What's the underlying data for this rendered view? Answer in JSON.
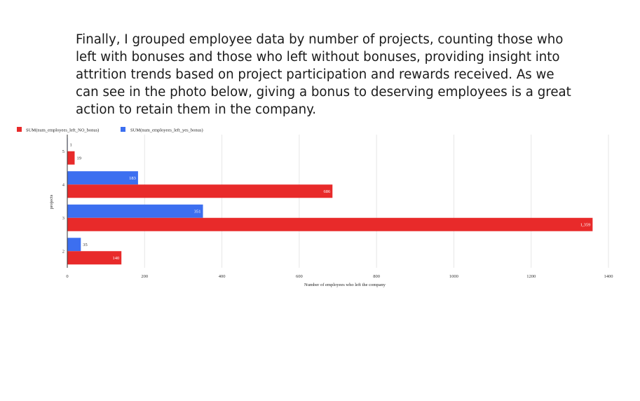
{
  "intro_text": "Finally, I grouped employee data by number of projects, counting those who left with bonuses and those who left without bonuses, providing insight into attrition trends based on project participation and rewards received. As we can see in the photo below, giving a bonus to deserving employees is a great action to retain them in the company.",
  "colors": {
    "no_bonus": "#e82a2a",
    "yes_bonus": "#3c6ff0",
    "grid": "#e6e6e6",
    "axis": "#333333"
  },
  "chart_data": {
    "type": "bar",
    "orientation": "horizontal",
    "categories": [
      "2",
      "3",
      "4",
      "5"
    ],
    "series": [
      {
        "name": "SUM(num_employees_left_NO_bonus)",
        "values": [
          140,
          1359,
          686,
          19
        ]
      },
      {
        "name": "SUM(num_employees_left_yes_bonus)",
        "values": [
          35,
          351,
          183,
          1
        ]
      }
    ],
    "data_labels": {
      "no_bonus": [
        "140",
        "1,359",
        "686",
        "19"
      ],
      "yes_bonus": [
        "35",
        "351",
        "183",
        "1"
      ]
    },
    "xlabel": "Number of employees who left the company",
    "ylabel": "projects",
    "xlim": [
      0,
      1400
    ],
    "xticks": [
      0,
      200,
      400,
      600,
      800,
      1000,
      1200,
      1400
    ],
    "grid": true,
    "legend": "top-left"
  }
}
